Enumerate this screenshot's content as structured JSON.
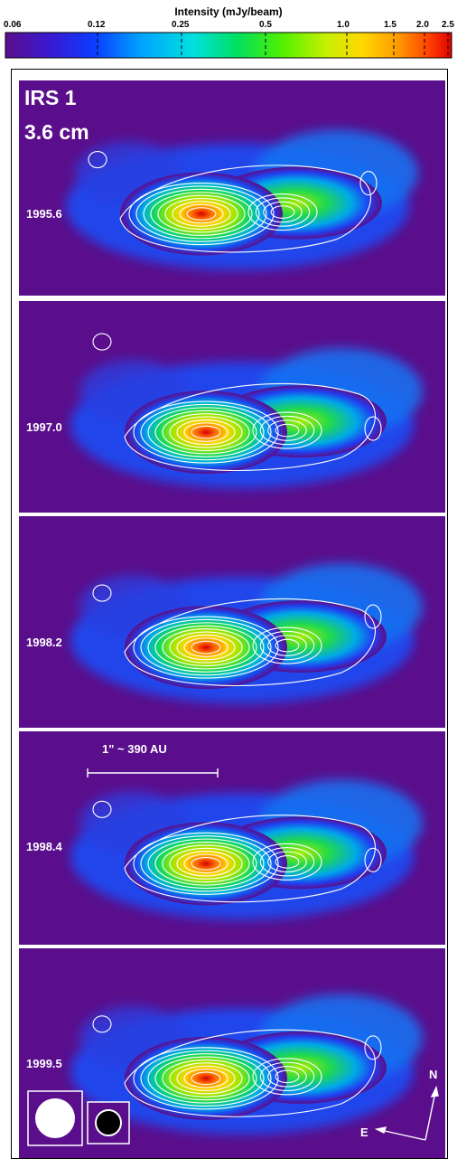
{
  "colorbar": {
    "title": "Intensity (mJy/beam)",
    "tick_labels": [
      "0.06",
      "0.12",
      "0.25",
      "0.5",
      "1.0",
      "1.5",
      "2.0",
      "2.5"
    ]
  },
  "figure": {
    "source_name": "IRS 1",
    "wavelength": "3.6 cm",
    "epochs": [
      "1995.6",
      "1997.0",
      "1998.2",
      "1998.4",
      "1999.5"
    ],
    "scale_bar_label": "1\" ~ 390 AU",
    "compass": {
      "north": "N",
      "east": "E"
    }
  },
  "colors": {
    "background": "#5a0e8c",
    "contour": "#ffffff",
    "separator": "#ffffff"
  }
}
